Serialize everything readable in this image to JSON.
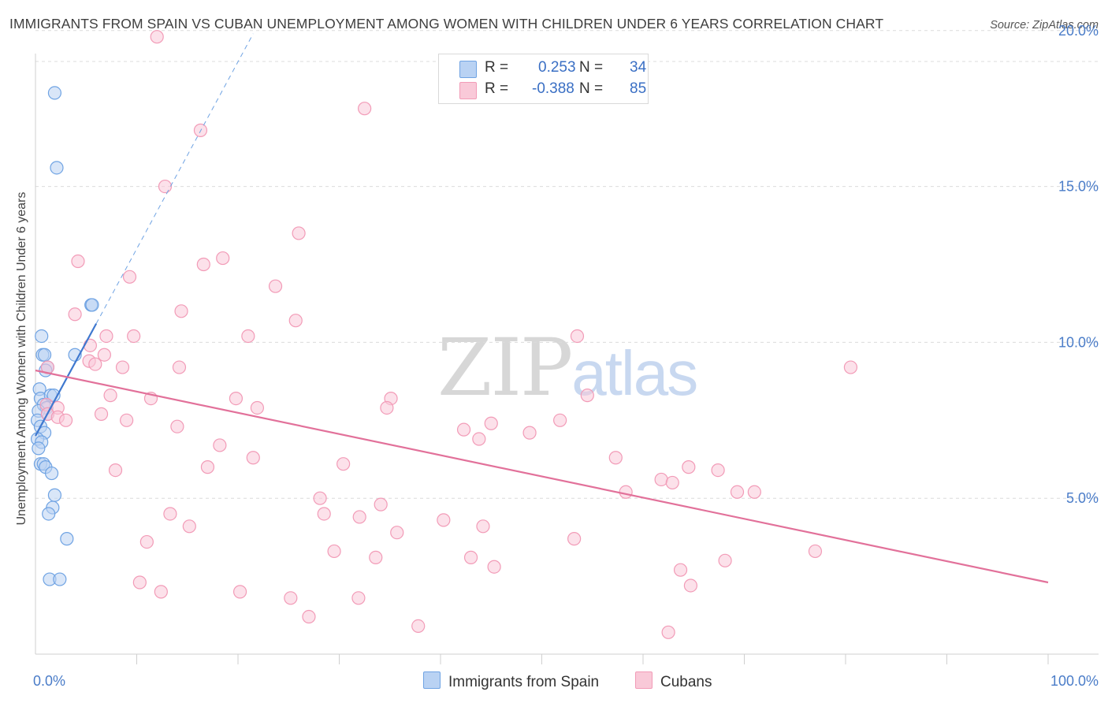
{
  "header": {
    "title": "IMMIGRANTS FROM SPAIN VS CUBAN UNEMPLOYMENT AMONG WOMEN WITH CHILDREN UNDER 6 YEARS CORRELATION CHART",
    "source": "Source: ZipAtlas.com"
  },
  "watermark": {
    "zip": "ZIP",
    "atlas": "atlas"
  },
  "legend": {
    "rows": [
      {
        "r_label": "R =",
        "r_value": "0.253",
        "n_label": "N =",
        "n_value": "34",
        "color": "#6fa3e3"
      },
      {
        "r_label": "R =",
        "r_value": "-0.388",
        "n_label": "N =",
        "n_value": "85",
        "color": "#f29bb7"
      }
    ]
  },
  "bottom_legend": [
    "Immigrants from Spain",
    "Cubans"
  ],
  "chart_data": {
    "type": "scatter",
    "title": "IMMIGRANTS FROM SPAIN VS CUBAN UNEMPLOYMENT AMONG WOMEN WITH CHILDREN UNDER 6 YEARS CORRELATION CHART",
    "xlabel": "",
    "ylabel": "Unemployment Among Women with Children Under 6 years",
    "xlim": [
      0,
      100
    ],
    "ylim": [
      0,
      20.5
    ],
    "x_ticks": [
      "0.0%",
      "100.0%"
    ],
    "y_ticks": [
      {
        "value": 5,
        "label": "5.0%"
      },
      {
        "value": 10,
        "label": "10.0%"
      },
      {
        "value": 15,
        "label": "15.0%"
      },
      {
        "value": 20,
        "label": "20.0%"
      }
    ],
    "grid": "horizontal dashed",
    "legend_position": "top-center",
    "series": [
      {
        "name": "Immigrants from Spain",
        "color": "#6fa3e3",
        "fill": "#b9d2f3",
        "r": 0.253,
        "n": 34,
        "trend": {
          "x": [
            0.0,
            6.0
          ],
          "y": [
            7.0,
            10.6
          ],
          "dashed_to": [
            21.5,
            19.9
          ]
        },
        "points": [
          [
            1.9,
            18.0
          ],
          [
            2.1,
            15.6
          ],
          [
            5.5,
            11.2
          ],
          [
            5.6,
            11.2
          ],
          [
            0.6,
            10.2
          ],
          [
            0.7,
            9.6
          ],
          [
            0.9,
            9.6
          ],
          [
            1.2,
            9.2
          ],
          [
            3.9,
            9.6
          ],
          [
            1.0,
            9.1
          ],
          [
            0.4,
            8.5
          ],
          [
            0.5,
            8.2
          ],
          [
            1.5,
            8.3
          ],
          [
            1.8,
            8.3
          ],
          [
            0.8,
            8.0
          ],
          [
            1.1,
            7.9
          ],
          [
            0.3,
            7.8
          ],
          [
            1.2,
            7.7
          ],
          [
            0.2,
            7.5
          ],
          [
            0.5,
            7.3
          ],
          [
            0.9,
            7.1
          ],
          [
            0.2,
            6.9
          ],
          [
            0.6,
            6.8
          ],
          [
            0.3,
            6.6
          ],
          [
            0.5,
            6.1
          ],
          [
            0.8,
            6.1
          ],
          [
            1.0,
            6.0
          ],
          [
            1.6,
            5.8
          ],
          [
            1.9,
            5.1
          ],
          [
            1.7,
            4.7
          ],
          [
            1.3,
            4.5
          ],
          [
            3.1,
            3.7
          ],
          [
            1.4,
            2.4
          ],
          [
            2.4,
            2.4
          ]
        ]
      },
      {
        "name": "Cubans",
        "color": "#f29bb7",
        "fill": "#f9c9d8",
        "r": -0.388,
        "n": 85,
        "trend": {
          "x": [
            0.0,
            100.0
          ],
          "y": [
            9.1,
            2.3
          ]
        },
        "points": [
          [
            12.0,
            19.8
          ],
          [
            32.5,
            17.5
          ],
          [
            16.3,
            16.8
          ],
          [
            12.8,
            15.0
          ],
          [
            26.0,
            13.5
          ],
          [
            4.2,
            12.6
          ],
          [
            18.5,
            12.7
          ],
          [
            16.6,
            12.5
          ],
          [
            9.3,
            12.1
          ],
          [
            23.7,
            11.8
          ],
          [
            3.9,
            10.9
          ],
          [
            14.4,
            11.0
          ],
          [
            25.7,
            10.7
          ],
          [
            7.0,
            10.2
          ],
          [
            9.7,
            10.2
          ],
          [
            21.0,
            10.2
          ],
          [
            53.5,
            10.2
          ],
          [
            5.4,
            9.9
          ],
          [
            6.8,
            9.6
          ],
          [
            5.3,
            9.4
          ],
          [
            5.9,
            9.3
          ],
          [
            8.6,
            9.2
          ],
          [
            14.2,
            9.2
          ],
          [
            80.5,
            9.2
          ],
          [
            1.2,
            9.2
          ],
          [
            7.4,
            8.3
          ],
          [
            11.4,
            8.2
          ],
          [
            19.8,
            8.2
          ],
          [
            35.1,
            8.2
          ],
          [
            54.5,
            8.3
          ],
          [
            1.1,
            8.0
          ],
          [
            2.2,
            7.9
          ],
          [
            21.9,
            7.9
          ],
          [
            34.7,
            7.9
          ],
          [
            1.2,
            7.7
          ],
          [
            2.2,
            7.6
          ],
          [
            3.0,
            7.5
          ],
          [
            6.5,
            7.7
          ],
          [
            9.0,
            7.5
          ],
          [
            14.0,
            7.3
          ],
          [
            42.3,
            7.2
          ],
          [
            45.0,
            7.4
          ],
          [
            51.8,
            7.5
          ],
          [
            48.8,
            7.1
          ],
          [
            43.8,
            6.9
          ],
          [
            18.2,
            6.7
          ],
          [
            21.5,
            6.3
          ],
          [
            30.4,
            6.1
          ],
          [
            17.0,
            6.0
          ],
          [
            7.9,
            5.9
          ],
          [
            57.3,
            6.3
          ],
          [
            64.5,
            6.0
          ],
          [
            67.4,
            5.9
          ],
          [
            61.8,
            5.6
          ],
          [
            62.9,
            5.5
          ],
          [
            58.3,
            5.2
          ],
          [
            69.3,
            5.2
          ],
          [
            71.0,
            5.2
          ],
          [
            28.1,
            5.0
          ],
          [
            34.1,
            4.8
          ],
          [
            13.3,
            4.5
          ],
          [
            28.5,
            4.5
          ],
          [
            32.0,
            4.4
          ],
          [
            40.3,
            4.3
          ],
          [
            15.2,
            4.1
          ],
          [
            44.2,
            4.1
          ],
          [
            35.7,
            3.9
          ],
          [
            11.0,
            3.6
          ],
          [
            53.2,
            3.7
          ],
          [
            29.5,
            3.3
          ],
          [
            33.6,
            3.1
          ],
          [
            43.0,
            3.1
          ],
          [
            77.0,
            3.3
          ],
          [
            68.1,
            3.0
          ],
          [
            45.3,
            2.8
          ],
          [
            63.7,
            2.7
          ],
          [
            10.3,
            2.3
          ],
          [
            64.7,
            2.2
          ],
          [
            12.4,
            2.0
          ],
          [
            20.2,
            2.0
          ],
          [
            25.2,
            1.8
          ],
          [
            31.9,
            1.8
          ],
          [
            27.0,
            1.2
          ],
          [
            37.8,
            0.9
          ],
          [
            62.5,
            0.7
          ]
        ]
      }
    ]
  }
}
